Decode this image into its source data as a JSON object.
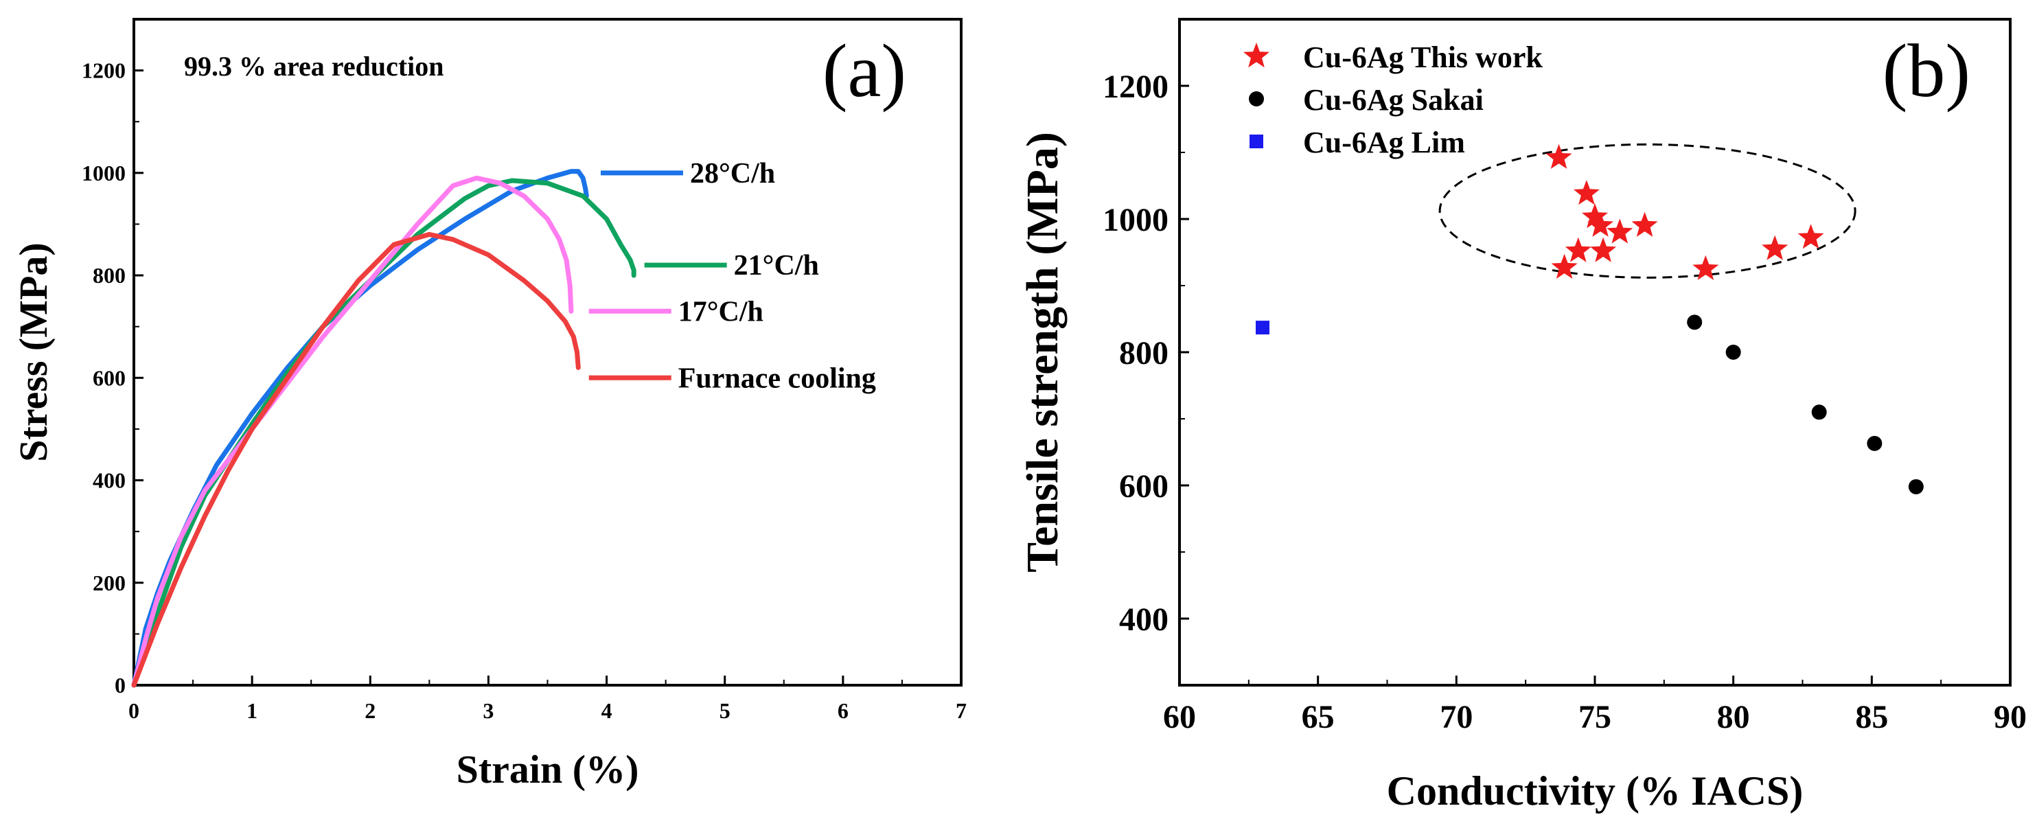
{
  "chart_data": [
    {
      "panel_label": "(a)",
      "type": "line",
      "title": "",
      "annotation": "99.3 % area reduction",
      "xlabel": "Strain (%)",
      "ylabel": "Stress (MPa)",
      "xlim": [
        0,
        7
      ],
      "ylim": [
        0,
        1300
      ],
      "x_ticks": [
        "0",
        "1",
        "2",
        "3",
        "4",
        "5",
        "6",
        "7"
      ],
      "y_ticks": [
        "0",
        "200",
        "400",
        "600",
        "800",
        "1000",
        "1200"
      ],
      "series": [
        {
          "name": "28°C/h",
          "color": "#1a73e8",
          "x": [
            0,
            0.1,
            0.2,
            0.3,
            0.5,
            0.7,
            1.0,
            1.3,
            1.6,
            2.0,
            2.4,
            2.8,
            3.2,
            3.5,
            3.7,
            3.76,
            3.8,
            3.82,
            3.83
          ],
          "y": [
            0,
            110,
            180,
            240,
            340,
            430,
            530,
            620,
            700,
            780,
            850,
            910,
            965,
            990,
            1003,
            1003,
            990,
            970,
            955
          ],
          "label_at": [
            3.95,
            1000
          ]
        },
        {
          "name": "21°C/h",
          "color": "#0fa35f",
          "x": [
            0,
            0.1,
            0.2,
            0.4,
            0.6,
            0.8,
            1.0,
            1.3,
            1.6,
            2.0,
            2.4,
            2.8,
            3.0,
            3.2,
            3.5,
            3.8,
            4.0,
            4.12,
            4.2,
            4.23,
            4.23
          ],
          "y": [
            0,
            70,
            140,
            270,
            370,
            440,
            510,
            610,
            700,
            790,
            880,
            950,
            975,
            985,
            980,
            955,
            910,
            860,
            830,
            810,
            800
          ],
          "label_at": [
            4.32,
            820
          ]
        },
        {
          "name": "17°C/h",
          "color": "#ff7df0",
          "x": [
            0,
            0.1,
            0.2,
            0.4,
            0.6,
            0.8,
            1.0,
            1.3,
            1.6,
            2.0,
            2.4,
            2.7,
            2.9,
            3.1,
            3.3,
            3.5,
            3.6,
            3.66,
            3.69,
            3.7
          ],
          "y": [
            0,
            90,
            170,
            290,
            380,
            440,
            500,
            590,
            680,
            790,
            900,
            975,
            990,
            980,
            955,
            910,
            870,
            830,
            780,
            730
          ],
          "label_at": [
            3.85,
            730
          ]
        },
        {
          "name": "Furnace cooling",
          "color": "#ee3e3e",
          "x": [
            0,
            0.1,
            0.2,
            0.4,
            0.6,
            0.8,
            1.0,
            1.3,
            1.6,
            1.9,
            2.2,
            2.5,
            2.7,
            3.0,
            3.3,
            3.5,
            3.65,
            3.72,
            3.75,
            3.76
          ],
          "y": [
            0,
            60,
            120,
            230,
            330,
            420,
            500,
            600,
            700,
            790,
            860,
            880,
            870,
            840,
            790,
            750,
            710,
            680,
            650,
            620
          ],
          "label_at": [
            3.85,
            600
          ]
        }
      ]
    },
    {
      "panel_label": "(b)",
      "type": "scatter",
      "title": "",
      "xlabel": "Conductivity (% IACS)",
      "ylabel": "Tensile strength (MPa)",
      "xlim": [
        60,
        90
      ],
      "ylim": [
        300,
        1300
      ],
      "x_ticks": [
        "60",
        "65",
        "70",
        "75",
        "80",
        "85",
        "90"
      ],
      "y_ticks": [
        "400",
        "600",
        "800",
        "1000",
        "1200"
      ],
      "legend_position": "top-left",
      "series": [
        {
          "name": "Cu-6Ag This work",
          "marker": "star",
          "color": "#ee1c1c",
          "x": [
            73.7,
            73.9,
            74.4,
            74.7,
            75.0,
            75.2,
            75.3,
            75.9,
            76.8,
            79.0,
            81.5,
            82.8
          ],
          "y": [
            1092,
            927,
            952,
            1038,
            1003,
            990,
            952,
            980,
            990,
            925,
            955,
            972
          ]
        },
        {
          "name": "Cu-6Ag Sakai",
          "marker": "circle",
          "color": "#000000",
          "x": [
            78.6,
            80.0,
            83.1,
            85.1,
            86.6
          ],
          "y": [
            845,
            800,
            710,
            663,
            598
          ]
        },
        {
          "name": "Cu-6Ag  Lim",
          "marker": "square",
          "color": "#1a1aee",
          "x": [
            63.0
          ],
          "y": [
            837
          ]
        }
      ],
      "ellipse": {
        "center": [
          76.9,
          1012
        ],
        "x_radius": 7.5,
        "y_radius": 100
      }
    }
  ]
}
